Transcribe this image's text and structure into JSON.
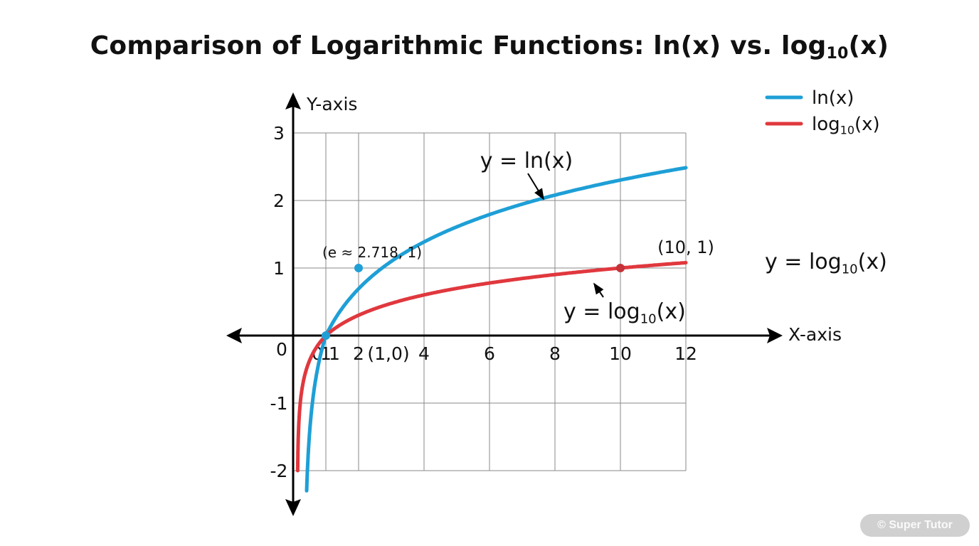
{
  "title": {
    "main": "Comparison of Logarithmic Functions: ln(x) vs. log",
    "sub": "10",
    "tail": "(x)"
  },
  "watermark": "© Super Tutor",
  "colors": {
    "ln": "#1e9fd6",
    "log10": "#e0383e",
    "grid": "#8a8a8a",
    "axis": "#000000"
  },
  "chart_data": {
    "type": "line",
    "title": "Comparison of Logarithmic Functions: ln(x) vs. log10(x)",
    "xlabel": "X-axis",
    "ylabel": "Y-axis",
    "xlim": [
      0,
      12
    ],
    "ylim": [
      -2,
      3
    ],
    "grid": true,
    "legend_position": "top-right",
    "x_ticks": [
      {
        "value": 0.1,
        "label": "0.1"
      },
      {
        "value": 1,
        "label": "1"
      },
      {
        "value": 2,
        "label": "2"
      },
      {
        "value": 4,
        "label": "4"
      },
      {
        "value": 6,
        "label": "6"
      },
      {
        "value": 8,
        "label": "8"
      },
      {
        "value": 10,
        "label": "10"
      },
      {
        "value": 12,
        "label": "12"
      }
    ],
    "origin_label": "0",
    "y_ticks": [
      {
        "value": 3,
        "label": "3"
      },
      {
        "value": 2,
        "label": "2"
      },
      {
        "value": 1,
        "label": "1"
      },
      {
        "value": -1,
        "label": "-1"
      },
      {
        "value": -2,
        "label": "-2"
      }
    ],
    "series": [
      {
        "name": "ln(x)",
        "legend": "ln(x)",
        "curve_label": "y = ln(x)",
        "color": "#1e9fd6",
        "function": "ln",
        "x_range": [
          0.1,
          12
        ],
        "points": [
          [
            0.1,
            -2.303
          ],
          [
            0.25,
            -1.386
          ],
          [
            0.5,
            -0.693
          ],
          [
            1,
            0
          ],
          [
            2,
            0.693
          ],
          [
            2.718,
            1
          ],
          [
            4,
            1.386
          ],
          [
            6,
            1.792
          ],
          [
            8,
            2.079
          ],
          [
            10,
            2.303
          ],
          [
            12,
            2.485
          ]
        ]
      },
      {
        "name": "log10(x)",
        "legend": "log",
        "legend_sub": "10",
        "legend_tail": "(x)",
        "curve_label": "y = log",
        "curve_label_sub": "10",
        "curve_label_tail": "(x)",
        "color": "#e0383e",
        "function": "log10",
        "x_range": [
          0.01,
          12
        ],
        "points": [
          [
            0.01,
            -2
          ],
          [
            0.1,
            -1
          ],
          [
            0.5,
            -0.301
          ],
          [
            1,
            0
          ],
          [
            2,
            0.301
          ],
          [
            4,
            0.602
          ],
          [
            6,
            0.778
          ],
          [
            8,
            0.903
          ],
          [
            10,
            1
          ],
          [
            12,
            1.079
          ]
        ]
      }
    ],
    "annotations": [
      {
        "text": "(e ≈ 2.718, 1)",
        "x": 2,
        "y": 1,
        "series": "ln(x)"
      },
      {
        "text": "(10, 1)",
        "x": 10,
        "y": 1,
        "series": "log10(x)"
      },
      {
        "text": "(1,0)",
        "x": 1,
        "y": 0
      }
    ],
    "side_label": {
      "text": "y = log",
      "sub": "10",
      "tail": "(x)"
    }
  }
}
